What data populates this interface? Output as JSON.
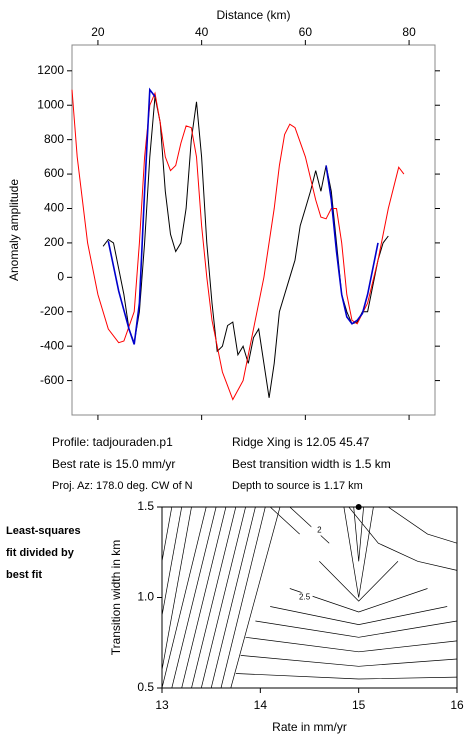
{
  "chart_data": [
    {
      "type": "line",
      "xlabel": "Distance (km)",
      "ylabel": "Anomaly amplitude",
      "xlim": [
        15,
        85
      ],
      "xticks": [
        20,
        40,
        60,
        80
      ],
      "ylim": [
        -800,
        1350
      ],
      "yticks": [
        -600,
        -400,
        -200,
        0,
        200,
        400,
        600,
        800,
        1000,
        1200
      ],
      "series": [
        {
          "color": "#000000",
          "x": [
            21,
            22,
            23,
            24,
            25,
            26,
            27,
            28,
            29,
            30,
            31,
            32,
            33,
            34,
            35,
            36,
            37,
            38,
            39,
            40,
            41,
            42,
            43,
            44,
            45,
            46,
            47,
            48,
            49,
            50,
            51,
            52,
            53,
            54,
            55,
            56,
            57,
            58,
            59,
            60,
            61,
            62,
            63,
            64,
            65,
            66,
            67,
            68,
            69,
            70,
            71,
            72,
            73,
            74,
            75,
            76
          ],
          "values": [
            180,
            220,
            200,
            50,
            -100,
            -300,
            -380,
            -200,
            200,
            700,
            1050,
            900,
            500,
            250,
            150,
            200,
            400,
            800,
            1020,
            700,
            200,
            -150,
            -430,
            -400,
            -280,
            -260,
            -450,
            -400,
            -500,
            -350,
            -300,
            -500,
            -700,
            -500,
            -200,
            -100,
            0,
            100,
            300,
            400,
            500,
            620,
            500,
            650,
            500,
            200,
            -100,
            -200,
            -270,
            -260,
            -200,
            -200,
            -50,
            100,
            200,
            240
          ]
        },
        {
          "color": "#ff0000",
          "x": [
            15,
            16,
            18,
            20,
            22,
            24,
            25,
            27,
            28,
            29,
            30,
            31,
            32,
            33,
            34,
            35,
            36,
            37,
            38,
            39,
            40,
            41,
            42,
            44,
            46,
            48,
            50,
            52,
            54,
            55,
            56,
            57,
            58,
            60,
            62,
            63,
            64,
            65,
            66,
            67,
            68,
            69,
            70,
            72,
            74,
            76,
            78,
            79
          ],
          "values": [
            1090,
            700,
            200,
            -100,
            -300,
            -380,
            -370,
            -200,
            200,
            700,
            1000,
            1070,
            900,
            700,
            620,
            650,
            780,
            880,
            870,
            700,
            300,
            0,
            -250,
            -550,
            -710,
            -600,
            -300,
            0,
            400,
            650,
            830,
            890,
            870,
            700,
            450,
            350,
            340,
            400,
            400,
            200,
            -100,
            -250,
            -270,
            -150,
            100,
            400,
            640,
            600
          ]
        },
        {
          "color": "#0000cc",
          "x": [
            22,
            24,
            26,
            27,
            28,
            29,
            30,
            31,
            45,
            64,
            65,
            66,
            67,
            68,
            69,
            70,
            71,
            72,
            73,
            74
          ],
          "values": [
            210,
            -80,
            -300,
            -390,
            -150,
            500,
            1090,
            1050,
            null,
            650,
            450,
            150,
            -100,
            -230,
            -270,
            -250,
            -210,
            -100,
            50,
            200
          ]
        }
      ],
      "annotations": [
        "Profile: tadjouraden.p1",
        "Best rate is 15.0 mm/yr",
        "Proj. Az: 178.0 deg. CW of N",
        "Ridge Xing is 12.05 45.47",
        "Best transition width is 1.5 km",
        "Depth to source is    1.17 km"
      ]
    },
    {
      "type": "contour",
      "title": [
        "Least-squares",
        "fit divided by",
        "best fit"
      ],
      "xlabel": "Rate in mm/yr",
      "ylabel": "Transition width in km",
      "xlim": [
        13,
        16
      ],
      "xticks": [
        13,
        14,
        15,
        16
      ],
      "ylim": [
        0.5,
        1.5
      ],
      "yticks": [
        {
          "value": 0.5,
          "label": "0.5"
        },
        {
          "value": 1.0,
          "label": "1.0"
        },
        {
          "value": 1.5,
          "label": "1.5"
        }
      ],
      "contours": [
        {
          "x": [
            14.95,
            15,
            15.05
          ],
          "y": [
            1.5,
            1.2,
            1.5
          ]
        },
        {
          "x": [
            14.85,
            15,
            15.15
          ],
          "y": [
            1.5,
            1.0,
            1.5
          ]
        },
        {
          "x": [
            14.6,
            15,
            15.4
          ],
          "y": [
            1.2,
            0.98,
            1.2
          ]
        },
        {
          "x": [
            14.3,
            15,
            15.7
          ],
          "y": [
            1.05,
            0.92,
            1.05
          ]
        },
        {
          "x": [
            14.1,
            15,
            15.9
          ],
          "y": [
            0.95,
            0.85,
            0.95
          ]
        },
        {
          "x": [
            13.95,
            15,
            16
          ],
          "y": [
            0.87,
            0.78,
            0.87
          ]
        },
        {
          "x": [
            13.85,
            15,
            16
          ],
          "y": [
            0.78,
            0.7,
            0.76
          ]
        },
        {
          "x": [
            13.8,
            15,
            16
          ],
          "y": [
            0.68,
            0.62,
            0.66
          ]
        },
        {
          "x": [
            13.75,
            15,
            16
          ],
          "y": [
            0.58,
            0.55,
            0.56
          ]
        },
        {
          "x": [
            14.9,
            15.2,
            15.6,
            16
          ],
          "y": [
            1.5,
            1.3,
            1.2,
            1.15
          ]
        },
        {
          "x": [
            15.3,
            15.7,
            16
          ],
          "y": [
            1.5,
            1.35,
            1.3
          ]
        },
        {
          "x": [
            13.0,
            13.3
          ],
          "y": [
            0.6,
            1.5
          ]
        },
        {
          "x": [
            13.0,
            13.45
          ],
          "y": [
            0.5,
            1.5
          ]
        },
        {
          "x": [
            13.1,
            13.55
          ],
          "y": [
            0.5,
            1.5
          ]
        },
        {
          "x": [
            13.2,
            13.65
          ],
          "y": [
            0.5,
            1.5
          ]
        },
        {
          "x": [
            13.3,
            13.75
          ],
          "y": [
            0.5,
            1.5
          ]
        },
        {
          "x": [
            13.4,
            13.85
          ],
          "y": [
            0.5,
            1.5
          ]
        },
        {
          "x": [
            13.5,
            13.95
          ],
          "y": [
            0.5,
            1.5
          ]
        },
        {
          "x": [
            13.6,
            14.05
          ],
          "y": [
            0.5,
            1.5
          ]
        },
        {
          "x": [
            13.7,
            14.2
          ],
          "y": [
            0.5,
            1.5
          ]
        },
        {
          "x": [
            13.0,
            13.2
          ],
          "y": [
            0.9,
            1.5
          ]
        },
        {
          "x": [
            13.0,
            13.1
          ],
          "y": [
            1.2,
            1.5
          ]
        },
        {
          "x": [
            14.1,
            14.4
          ],
          "y": [
            1.5,
            1.35
          ]
        },
        {
          "x": [
            14.3,
            14.7
          ],
          "y": [
            1.5,
            1.3
          ]
        }
      ],
      "marker": {
        "x": 15.0,
        "y": 1.5
      },
      "labels": [
        {
          "text": "2",
          "x": 14.6,
          "y": 1.37
        },
        {
          "text": "2.5",
          "x": 14.45,
          "y": 1.0
        }
      ]
    }
  ]
}
